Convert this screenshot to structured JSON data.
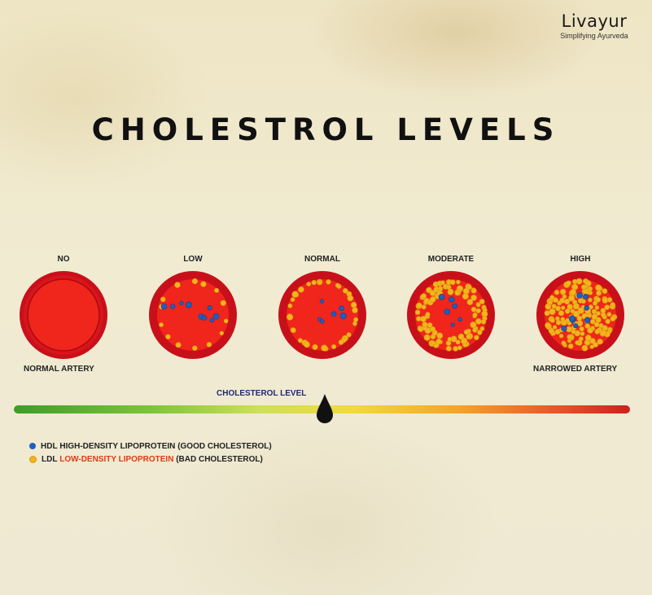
{
  "brand": {
    "name": "Livayur",
    "tagline": "Simplifying Ayurveda"
  },
  "title": "CHOLESTROL LEVELS",
  "stages": [
    {
      "label": "NO"
    },
    {
      "label": "LOW"
    },
    {
      "label": "NORMAL"
    },
    {
      "label": "MODERATE"
    },
    {
      "label": "HIGH"
    }
  ],
  "artery_labels": {
    "left": "NORMAL ARTERY",
    "right": "NARROWED ARTERY"
  },
  "scale": {
    "label": "CHOLESTEROL LEVEL",
    "indicator_level": 0.5
  },
  "legend": [
    {
      "abbr": "HDL",
      "name": "HIGH-DENSITY LIPOPROTEIN",
      "note": "(GOOD CHOLESTEROL)",
      "color": "#1f5fbf"
    },
    {
      "abbr": "LDL",
      "name": "LOW-DENSITY LIPOPROTEIN",
      "note": "(BAD CHOLESTEROL)",
      "color": "#f3b41c",
      "name_color": "#e23a12"
    }
  ],
  "colors": {
    "artery_wall": "#c8101a",
    "artery_lumen": "#f0251c",
    "hdl": "#1f5fbf",
    "ldl": "#f3b41c"
  }
}
